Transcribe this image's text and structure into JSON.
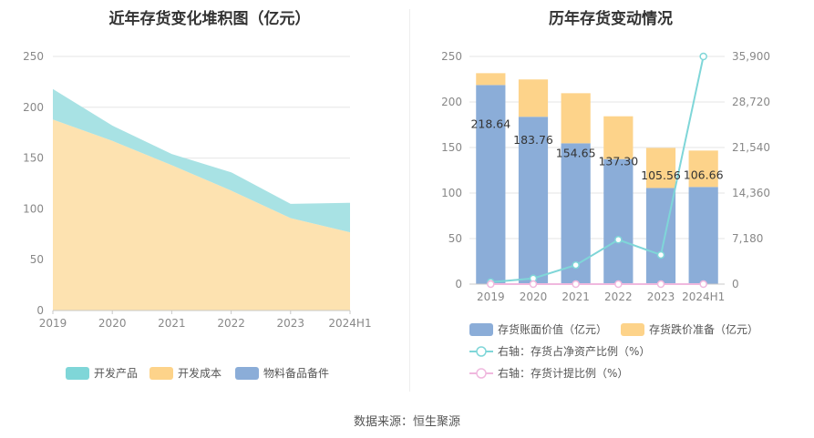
{
  "source_text": "数据来源：恒生聚源",
  "chart_data": [
    {
      "type": "area",
      "stacked": true,
      "title": "近年存货变化堆积图（亿元）",
      "categories": [
        "2019",
        "2020",
        "2021",
        "2022",
        "2023",
        "2024H1"
      ],
      "ylim": [
        0,
        250
      ],
      "yticks": [
        "0",
        "50",
        "100",
        "150",
        "200",
        "250"
      ],
      "grid": true,
      "legend_position": "bottom",
      "series": [
        {
          "name": "开发成本",
          "color": "#fde2b0",
          "values": [
            188,
            167,
            143,
            118,
            91,
            77
          ]
        },
        {
          "name": "开发产品",
          "color": "#a8e2e4",
          "values": [
            30,
            15,
            11,
            18,
            14,
            29
          ]
        },
        {
          "name": "物料备品备件",
          "color": "#8badd8",
          "values": [
            0,
            0,
            0,
            0,
            0,
            0
          ]
        }
      ],
      "legend": [
        {
          "name": "开发产品",
          "color": "#7fd6d8"
        },
        {
          "name": "开发成本",
          "color": "#fdd38a"
        },
        {
          "name": "物料备品备件",
          "color": "#8badd8"
        }
      ]
    },
    {
      "type": "bar",
      "stacked": true,
      "title": "历年存货变动情况",
      "categories": [
        "2019",
        "2020",
        "2021",
        "2022",
        "2023",
        "2024H1"
      ],
      "ylim": [
        0,
        250
      ],
      "yticks": [
        "0",
        "50",
        "100",
        "150",
        "200",
        "250"
      ],
      "y2lim": [
        0,
        35900
      ],
      "y2ticks": [
        "0",
        "7,180",
        "14,360",
        "21,540",
        "28,720",
        "35,900"
      ],
      "grid": true,
      "legend_position": "bottom",
      "series": [
        {
          "name": "存货账面价值（亿元）",
          "axis": "left",
          "kind": "bar",
          "color": "#8badd8",
          "values": [
            218.64,
            183.76,
            154.65,
            137.3,
            105.56,
            106.66
          ],
          "labels": [
            "218.64",
            "183.76",
            "154.65",
            "137.30",
            "105.56",
            "106.66"
          ]
        },
        {
          "name": "存货跌价准备（亿元）",
          "axis": "left",
          "kind": "bar",
          "color": "#fdd38a",
          "values": [
            13,
            41,
            55,
            47,
            44,
            40
          ]
        },
        {
          "name": "右轴：存货占净资产比例（%）",
          "axis": "right",
          "kind": "line",
          "color": "#7fd6d8",
          "values": [
            300,
            900,
            3000,
            7000,
            4600,
            35900
          ]
        },
        {
          "name": "右轴：存货计提比例（%）",
          "axis": "right",
          "kind": "line",
          "color": "#f0b8de",
          "values": [
            0,
            0,
            0,
            0,
            0,
            0
          ]
        }
      ]
    }
  ]
}
